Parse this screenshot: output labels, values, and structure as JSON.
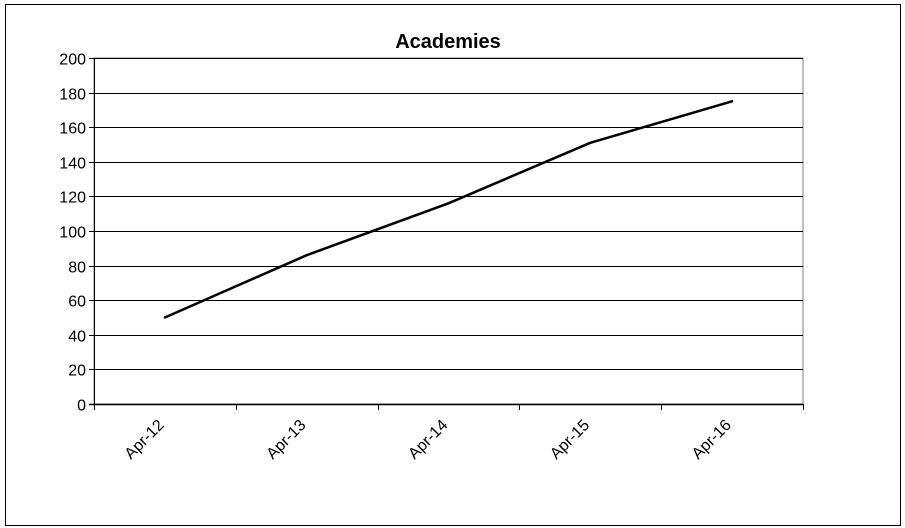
{
  "chart_data": {
    "type": "line",
    "title": "Academies",
    "xlabel": "",
    "ylabel": "",
    "categories": [
      "Apr-12",
      "Apr-13",
      "Apr-14",
      "Apr-15",
      "Apr-16"
    ],
    "series": [
      {
        "values": [
          50,
          86,
          116,
          151,
          175
        ]
      }
    ],
    "ylim": [
      0,
      200
    ],
    "yticks": [
      0,
      20,
      40,
      60,
      80,
      100,
      120,
      140,
      160,
      180,
      200
    ],
    "grid": true,
    "legend": "none",
    "colors": {
      "line": "#000000",
      "grid": "#000000",
      "plot_border": "#808080"
    }
  }
}
